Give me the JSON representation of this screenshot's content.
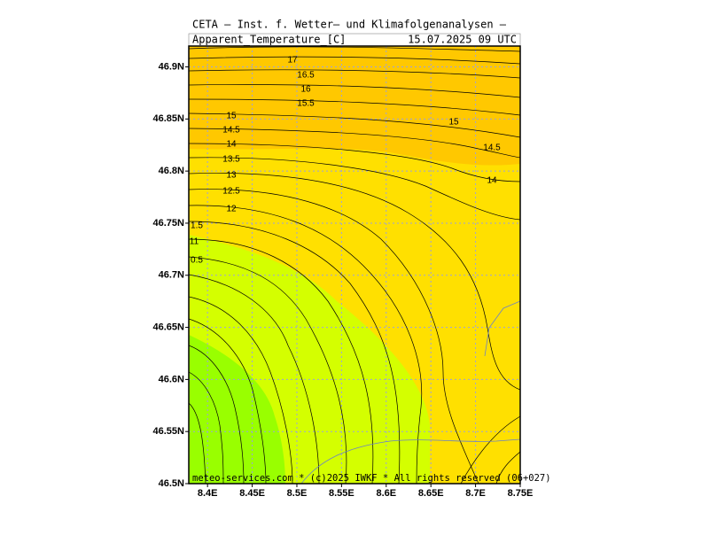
{
  "header": {
    "title": "CETA — Inst. f. Wetter— und Klimafolgenanalysen —",
    "variable": "Apparent_Temperature_[C]",
    "time": "15.07.2025 09 UTC"
  },
  "map": {
    "xlim": [
      8.379,
      8.75
    ],
    "ylim": [
      46.5,
      46.92
    ],
    "xticks": [
      {
        "value": 8.4,
        "label": "8.4E"
      },
      {
        "value": 8.45,
        "label": "8.45E"
      },
      {
        "value": 8.5,
        "label": "8.5E"
      },
      {
        "value": 8.55,
        "label": "8.55E"
      },
      {
        "value": 8.6,
        "label": "8.6E"
      },
      {
        "value": 8.65,
        "label": "8.65E"
      },
      {
        "value": 8.7,
        "label": "8.7E"
      },
      {
        "value": 8.75,
        "label": "8.75E"
      }
    ],
    "yticks": [
      {
        "value": 46.5,
        "label": "46.5N"
      },
      {
        "value": 46.55,
        "label": "46.55N"
      },
      {
        "value": 46.6,
        "label": "46.6N"
      },
      {
        "value": 46.65,
        "label": "46.65N"
      },
      {
        "value": 46.7,
        "label": "46.7N"
      },
      {
        "value": 46.75,
        "label": "46.75N"
      },
      {
        "value": 46.8,
        "label": "46.8N"
      },
      {
        "value": 46.85,
        "label": "46.85N"
      },
      {
        "value": 46.9,
        "label": "46.9N"
      }
    ],
    "contour_labels": [
      "17",
      "16.5",
      "16",
      "15.5",
      "15",
      "14.5",
      "14",
      "13.5",
      "13",
      "12.5",
      "12",
      "1.5",
      "11",
      "0.5",
      "15",
      "14.5",
      "14"
    ]
  },
  "footer": "meteo-services.com * (c)2025 IWKF * All rights reserved (06+027)"
}
